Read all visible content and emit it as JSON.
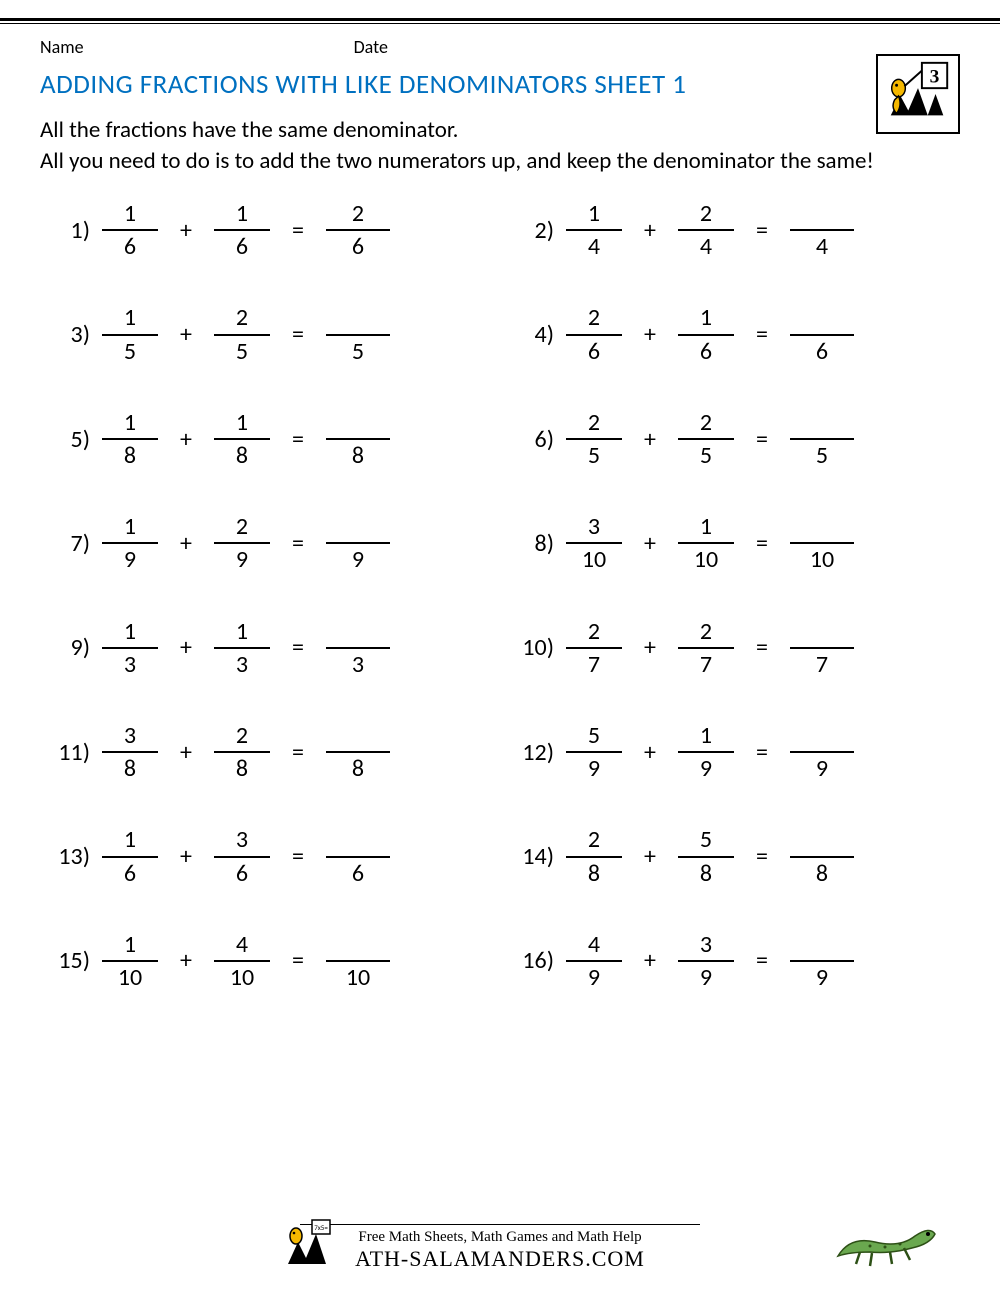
{
  "header": {
    "name_label": "Name",
    "date_label": "Date"
  },
  "title": "ADDING FRACTIONS WITH LIKE DENOMINATORS SHEET 1",
  "title_color": "#0070c0",
  "badge_number": "3",
  "instructions_line1": "All the fractions have the same denominator.",
  "instructions_line2": "All you need to do is to add the two numerators up, and keep the denominator the same!",
  "plus": "+",
  "equals": "=",
  "paren": ")",
  "problems": [
    {
      "n": "1",
      "a_num": "1",
      "a_den": "6",
      "b_num": "1",
      "b_den": "6",
      "ans_num": "2",
      "ans_den": "6"
    },
    {
      "n": "2",
      "a_num": "1",
      "a_den": "4",
      "b_num": "2",
      "b_den": "4",
      "ans_num": "",
      "ans_den": "4"
    },
    {
      "n": "3",
      "a_num": "1",
      "a_den": "5",
      "b_num": "2",
      "b_den": "5",
      "ans_num": "",
      "ans_den": "5"
    },
    {
      "n": "4",
      "a_num": "2",
      "a_den": "6",
      "b_num": "1",
      "b_den": "6",
      "ans_num": "",
      "ans_den": "6"
    },
    {
      "n": "5",
      "a_num": "1",
      "a_den": "8",
      "b_num": "1",
      "b_den": "8",
      "ans_num": "",
      "ans_den": "8"
    },
    {
      "n": "6",
      "a_num": "2",
      "a_den": "5",
      "b_num": "2",
      "b_den": "5",
      "ans_num": "",
      "ans_den": "5"
    },
    {
      "n": "7",
      "a_num": "1",
      "a_den": "9",
      "b_num": "2",
      "b_den": "9",
      "ans_num": "",
      "ans_den": "9"
    },
    {
      "n": "8",
      "a_num": "3",
      "a_den": "10",
      "b_num": "1",
      "b_den": "10",
      "ans_num": "",
      "ans_den": "10"
    },
    {
      "n": "9",
      "a_num": "1",
      "a_den": "3",
      "b_num": "1",
      "b_den": "3",
      "ans_num": "",
      "ans_den": "3"
    },
    {
      "n": "10",
      "a_num": "2",
      "a_den": "7",
      "b_num": "2",
      "b_den": "7",
      "ans_num": "",
      "ans_den": "7"
    },
    {
      "n": "11",
      "a_num": "3",
      "a_den": "8",
      "b_num": "2",
      "b_den": "8",
      "ans_num": "",
      "ans_den": "8"
    },
    {
      "n": "12",
      "a_num": "5",
      "a_den": "9",
      "b_num": "1",
      "b_den": "9",
      "ans_num": "",
      "ans_den": "9"
    },
    {
      "n": "13",
      "a_num": "1",
      "a_den": "6",
      "b_num": "3",
      "b_den": "6",
      "ans_num": "",
      "ans_den": "6"
    },
    {
      "n": "14",
      "a_num": "2",
      "a_den": "8",
      "b_num": "5",
      "b_den": "8",
      "ans_num": "",
      "ans_den": "8"
    },
    {
      "n": "15",
      "a_num": "1",
      "a_den": "10",
      "b_num": "4",
      "b_den": "10",
      "ans_num": "",
      "ans_den": "10"
    },
    {
      "n": "16",
      "a_num": "4",
      "a_den": "9",
      "b_num": "3",
      "b_den": "9",
      "ans_num": "",
      "ans_den": "9"
    }
  ],
  "footer": {
    "line1": "Free Math Sheets, Math Games and Math Help",
    "line2": "ATH-SALAMANDERS.COM"
  },
  "colors": {
    "salamander_body": "#f5b800",
    "salamander_green": "#6aa84f",
    "black": "#000000"
  },
  "font_sizes": {
    "title": 27,
    "body": 23,
    "fraction": 24
  }
}
